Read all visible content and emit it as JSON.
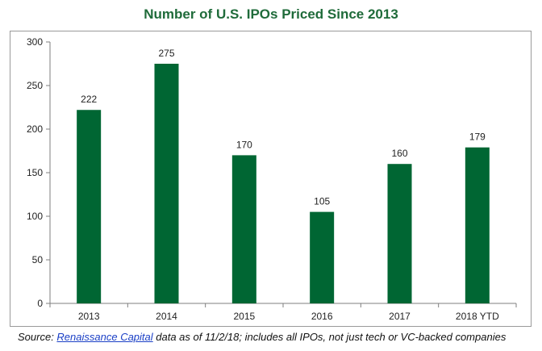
{
  "chart_data": {
    "type": "bar",
    "title": "Number of U.S. IPOs Priced Since 2013",
    "categories": [
      "2013",
      "2014",
      "2015",
      "2016",
      "2017",
      "2018 YTD"
    ],
    "values": [
      222,
      275,
      170,
      105,
      160,
      179
    ],
    "data_labels": [
      "222",
      "275",
      "170",
      "105",
      "160",
      "179"
    ],
    "yticks": [
      0,
      50,
      100,
      150,
      200,
      250,
      300
    ],
    "ylim": [
      0,
      300
    ],
    "xlabel": "",
    "ylabel": "",
    "grid": false,
    "legend": "none",
    "bar_color": "#006633"
  },
  "source": {
    "prefix": "Source: ",
    "link_text": "Renaissance Capital",
    "suffix": " data as of 11/2/18; includes all IPOs, not just tech or VC-backed companies"
  },
  "colors": {
    "title": "#1f6b3a",
    "axis": "#7f7f7f",
    "link": "#1a3fc6"
  }
}
